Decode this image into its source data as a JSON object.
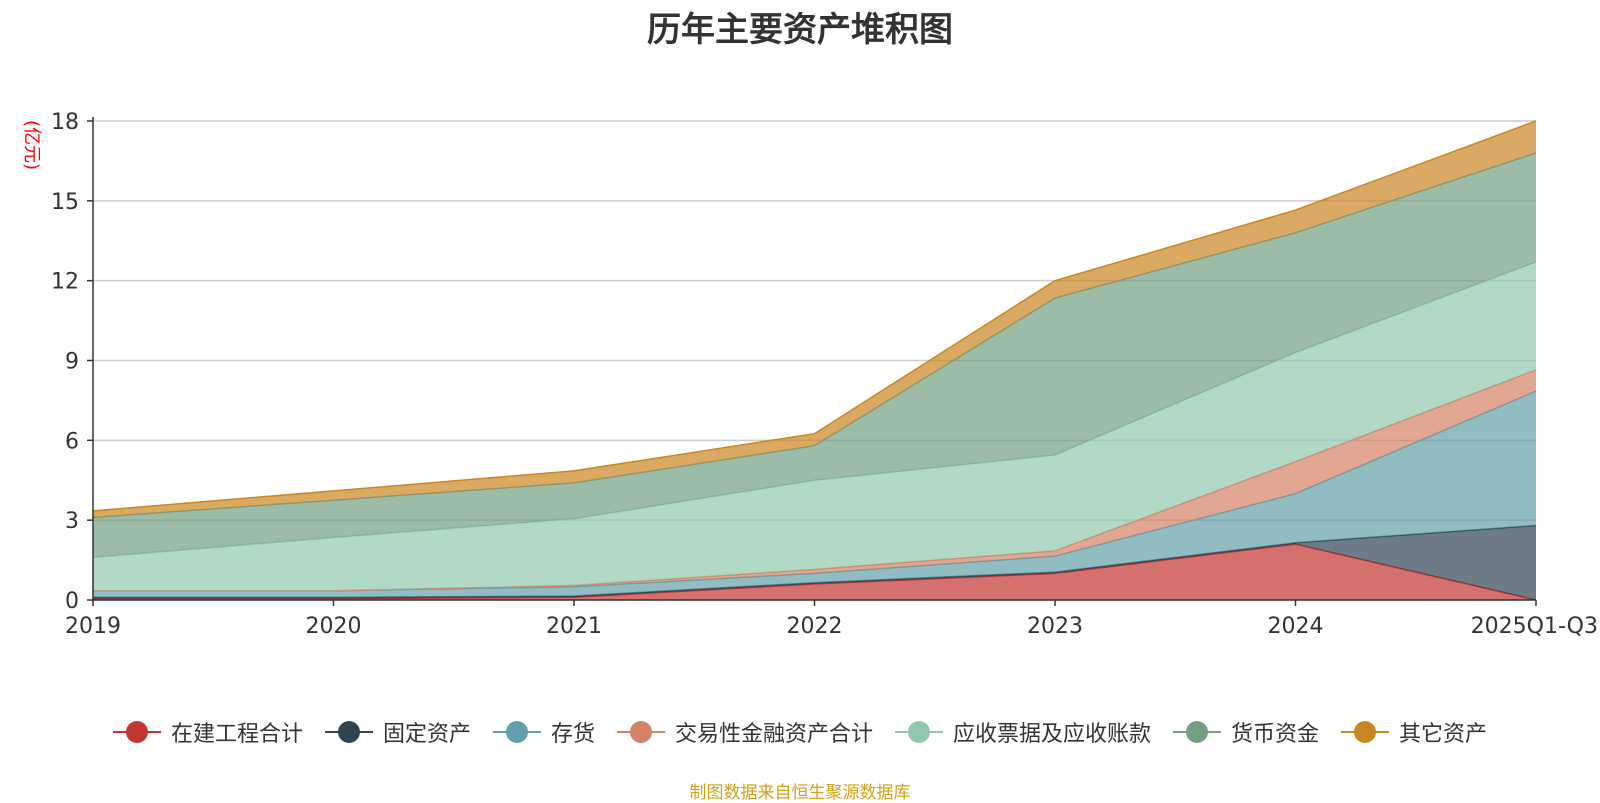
{
  "source_note": "制图数据来自恒生聚源数据库",
  "chart_data": {
    "type": "area",
    "stacked": true,
    "title": "历年主要资产堆积图",
    "ylabel": "(亿元)",
    "xlabel": "",
    "categories": [
      "2019",
      "2020",
      "2021",
      "2022",
      "2023",
      "2024",
      "2025Q1-Q3"
    ],
    "ylim": [
      0,
      18
    ],
    "yticks": [
      0,
      3,
      6,
      9,
      12,
      15,
      18
    ],
    "grid": true,
    "legend_position": "bottom",
    "series": [
      {
        "name": "在建工程合计",
        "color": "#c23531",
        "values": [
          0.05,
          0.05,
          0.1,
          0.6,
          1.0,
          2.1,
          0.0
        ]
      },
      {
        "name": "固定资产",
        "color": "#2f4554",
        "values": [
          0.05,
          0.05,
          0.05,
          0.05,
          0.05,
          0.05,
          2.8
        ]
      },
      {
        "name": "存货",
        "color": "#61a0a8",
        "values": [
          0.25,
          0.25,
          0.35,
          0.35,
          0.6,
          1.85,
          5.05
        ]
      },
      {
        "name": "交易性金融资产合计",
        "color": "#d48265",
        "values": [
          0.0,
          0.0,
          0.05,
          0.15,
          0.2,
          1.2,
          0.8
        ]
      },
      {
        "name": "应收票据及应收账款",
        "color": "#91c7ae",
        "values": [
          1.25,
          2.0,
          2.5,
          3.35,
          3.6,
          4.1,
          4.05
        ]
      },
      {
        "name": "货币资金",
        "color": "#749f83",
        "values": [
          1.5,
          1.4,
          1.35,
          1.3,
          5.9,
          4.5,
          4.1
        ]
      },
      {
        "name": "其它资产",
        "color": "#ca8622",
        "values": [
          0.25,
          0.35,
          0.45,
          0.45,
          0.65,
          0.85,
          1.2
        ]
      }
    ]
  }
}
